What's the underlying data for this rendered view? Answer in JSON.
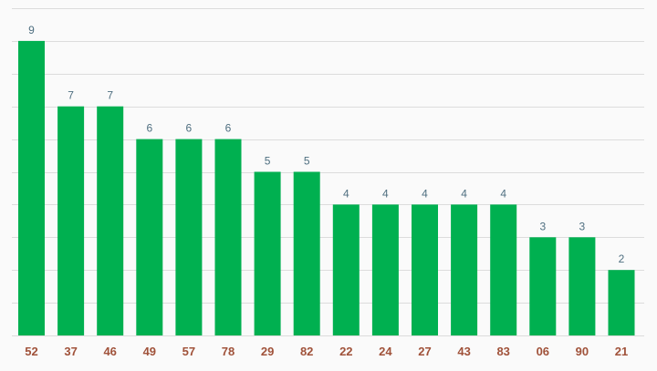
{
  "chart_data": {
    "type": "bar",
    "title": "",
    "xlabel": "",
    "ylabel": "",
    "categories": [
      "52",
      "37",
      "46",
      "49",
      "57",
      "78",
      "29",
      "82",
      "22",
      "24",
      "27",
      "43",
      "83",
      "06",
      "90",
      "21"
    ],
    "values": [
      9,
      7,
      7,
      6,
      6,
      6,
      5,
      5,
      4,
      4,
      4,
      4,
      4,
      3,
      3,
      2
    ],
    "ylim": [
      0,
      10
    ],
    "grid": true,
    "legend": "none",
    "bar_color": "#00b050",
    "value_label_color": "#4f6f80",
    "tick_label_color": "#a0523a",
    "grid_color": "#dcdcdc"
  }
}
